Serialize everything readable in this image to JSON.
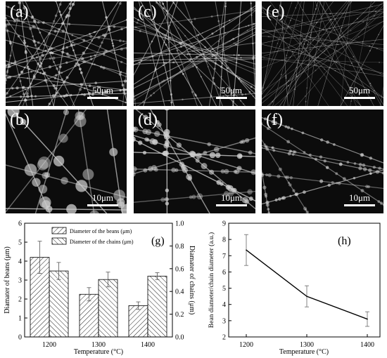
{
  "micrographs": [
    {
      "label": "(a)",
      "scale": "50μm",
      "style": "beaded-dense"
    },
    {
      "label": "(b)",
      "scale": "10μm",
      "style": "beads-large"
    },
    {
      "label": "(c)",
      "scale": "50μm",
      "style": "fibers-medium"
    },
    {
      "label": "(d)",
      "scale": "10μm",
      "style": "beads-medium"
    },
    {
      "label": "(e)",
      "scale": "50μm",
      "style": "fibers-fine"
    },
    {
      "label": "(f)",
      "scale": "10μm",
      "style": "beads-small"
    }
  ],
  "chart_data": [
    {
      "type": "bar",
      "panel_label": "(g)",
      "categories": [
        "1200",
        "1300",
        "1400"
      ],
      "xlabel": "Temperature (°C)",
      "ylabel": "Diamater of beans (μm)",
      "y2label": "Diamater of chains (μm)",
      "ylim": [
        0,
        6
      ],
      "y2lim": [
        0,
        1.0
      ],
      "yticks": [
        "0",
        "1",
        "2",
        "3",
        "4",
        "5",
        "6"
      ],
      "y2ticks": [
        "0.0",
        "0.2",
        "0.4",
        "0.6",
        "0.8",
        "1.0"
      ],
      "legend_position": "top-center",
      "series": [
        {
          "name": "Diameter of the beans (μm)",
          "axis": "left",
          "values": [
            4.2,
            2.25,
            1.65
          ],
          "errors": [
            0.85,
            0.35,
            0.2
          ],
          "hatch": "diag-right"
        },
        {
          "name": "Diameter of the chains (μm)",
          "axis": "right",
          "values": [
            0.58,
            0.505,
            0.535
          ],
          "errors": [
            0.075,
            0.065,
            0.03
          ],
          "hatch": "diag-left"
        }
      ]
    },
    {
      "type": "line",
      "panel_label": "(h)",
      "x": [
        "1200",
        "1300",
        "1400"
      ],
      "series": [
        {
          "values": [
            7.35,
            4.5,
            3.1
          ],
          "errors": [
            0.95,
            0.65,
            0.45
          ]
        }
      ],
      "xlabel": "Temperature (°C)",
      "ylabel": "Bean diameter/chain diameter (a.u.)",
      "ylim": [
        2,
        9
      ],
      "yticks": [
        "2",
        "3",
        "4",
        "5",
        "6",
        "7",
        "8",
        "9"
      ]
    }
  ]
}
